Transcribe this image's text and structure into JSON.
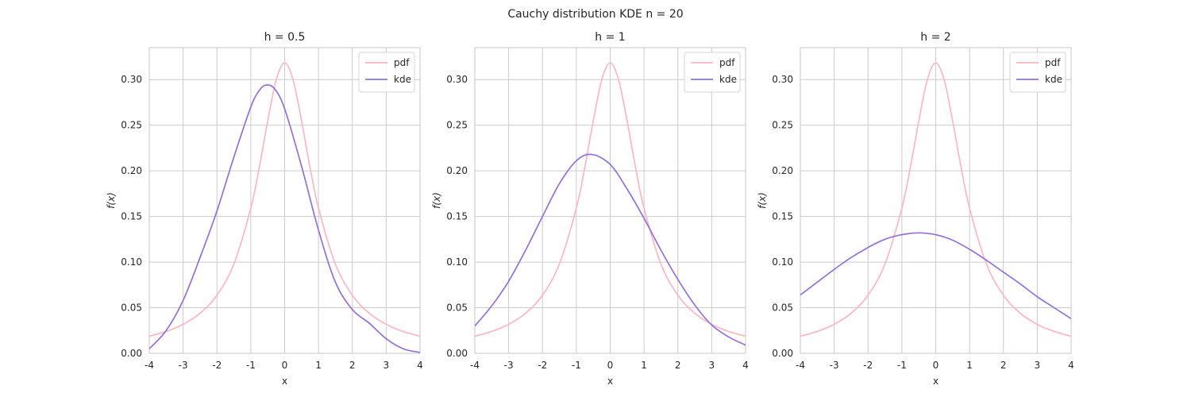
{
  "figure": {
    "title": "Cauchy distribution KDE n = 20"
  },
  "chart_data": [
    {
      "type": "line",
      "title": "h = 0.5",
      "xlabel": "x",
      "ylabel": "f(x)",
      "xlim": [
        -4,
        4
      ],
      "ylim": [
        0,
        0.335
      ],
      "xticks": [
        -4,
        -3,
        -2,
        -1,
        0,
        1,
        2,
        3,
        4
      ],
      "yticks": [
        0.0,
        0.05,
        0.1,
        0.15,
        0.2,
        0.25,
        0.3
      ],
      "grid": true,
      "legend_position": "upper right",
      "series": [
        {
          "name": "pdf",
          "color": "#ffb6c1",
          "x": [
            -4,
            -3.5,
            -3,
            -2.5,
            -2,
            -1.5,
            -1,
            -0.75,
            -0.5,
            -0.25,
            0,
            0.25,
            0.5,
            0.75,
            1,
            1.5,
            2,
            2.5,
            3,
            3.5,
            4
          ],
          "y": [
            0.0187,
            0.024,
            0.0318,
            0.0439,
            0.0637,
            0.0979,
            0.1592,
            0.2037,
            0.2546,
            0.2996,
            0.3183,
            0.2996,
            0.2546,
            0.2037,
            0.1592,
            0.0979,
            0.0637,
            0.0439,
            0.0318,
            0.024,
            0.0187
          ]
        },
        {
          "name": "kde",
          "color": "#9370db",
          "x": [
            -4,
            -3.5,
            -3,
            -2.5,
            -2,
            -1.5,
            -1,
            -0.75,
            -0.55,
            -0.3,
            0,
            0.5,
            1,
            1.5,
            2,
            2.5,
            3,
            3.5,
            4
          ],
          "y": [
            0.005,
            0.025,
            0.058,
            0.105,
            0.156,
            0.215,
            0.27,
            0.288,
            0.294,
            0.29,
            0.268,
            0.205,
            0.135,
            0.078,
            0.048,
            0.033,
            0.016,
            0.005,
            0.001
          ]
        }
      ]
    },
    {
      "type": "line",
      "title": "h = 1",
      "xlabel": "x",
      "ylabel": "f(x)",
      "xlim": [
        -4,
        4
      ],
      "ylim": [
        0,
        0.335
      ],
      "xticks": [
        -4,
        -3,
        -2,
        -1,
        0,
        1,
        2,
        3,
        4
      ],
      "yticks": [
        0.0,
        0.05,
        0.1,
        0.15,
        0.2,
        0.25,
        0.3
      ],
      "grid": true,
      "legend_position": "upper right",
      "series": [
        {
          "name": "pdf",
          "color": "#ffb6c1",
          "x": [
            -4,
            -3.5,
            -3,
            -2.5,
            -2,
            -1.5,
            -1,
            -0.75,
            -0.5,
            -0.25,
            0,
            0.25,
            0.5,
            0.75,
            1,
            1.5,
            2,
            2.5,
            3,
            3.5,
            4
          ],
          "y": [
            0.0187,
            0.024,
            0.0318,
            0.0439,
            0.0637,
            0.0979,
            0.1592,
            0.2037,
            0.2546,
            0.2996,
            0.3183,
            0.2996,
            0.2546,
            0.2037,
            0.1592,
            0.0979,
            0.0637,
            0.0439,
            0.0318,
            0.024,
            0.0187
          ]
        },
        {
          "name": "kde",
          "color": "#9370db",
          "x": [
            -4,
            -3.5,
            -3,
            -2.5,
            -2,
            -1.5,
            -1,
            -0.55,
            0,
            0.5,
            1,
            1.5,
            2,
            2.5,
            3,
            3.5,
            4
          ],
          "y": [
            0.03,
            0.052,
            0.079,
            0.113,
            0.15,
            0.186,
            0.211,
            0.218,
            0.207,
            0.18,
            0.148,
            0.113,
            0.081,
            0.053,
            0.031,
            0.018,
            0.009
          ]
        }
      ]
    },
    {
      "type": "line",
      "title": "h = 2",
      "xlabel": "x",
      "ylabel": "f(x)",
      "xlim": [
        -4,
        4
      ],
      "ylim": [
        0,
        0.335
      ],
      "xticks": [
        -4,
        -3,
        -2,
        -1,
        0,
        1,
        2,
        3,
        4
      ],
      "yticks": [
        0.0,
        0.05,
        0.1,
        0.15,
        0.2,
        0.25,
        0.3
      ],
      "grid": true,
      "legend_position": "upper right",
      "series": [
        {
          "name": "pdf",
          "color": "#ffb6c1",
          "x": [
            -4,
            -3.5,
            -3,
            -2.5,
            -2,
            -1.5,
            -1,
            -0.75,
            -0.5,
            -0.25,
            0,
            0.25,
            0.5,
            0.75,
            1,
            1.5,
            2,
            2.5,
            3,
            3.5,
            4
          ],
          "y": [
            0.0187,
            0.024,
            0.0318,
            0.0439,
            0.0637,
            0.0979,
            0.1592,
            0.2037,
            0.2546,
            0.2996,
            0.3183,
            0.2996,
            0.2546,
            0.2037,
            0.1592,
            0.0979,
            0.0637,
            0.0439,
            0.0318,
            0.024,
            0.0187
          ]
        },
        {
          "name": "kde",
          "color": "#9370db",
          "x": [
            -4,
            -3.5,
            -3,
            -2.5,
            -2,
            -1.5,
            -1,
            -0.5,
            0,
            0.5,
            1,
            1.5,
            2,
            2.5,
            3,
            3.5,
            4
          ],
          "y": [
            0.064,
            0.078,
            0.092,
            0.105,
            0.116,
            0.125,
            0.13,
            0.132,
            0.13,
            0.124,
            0.114,
            0.102,
            0.089,
            0.076,
            0.062,
            0.05,
            0.038
          ]
        }
      ]
    }
  ]
}
